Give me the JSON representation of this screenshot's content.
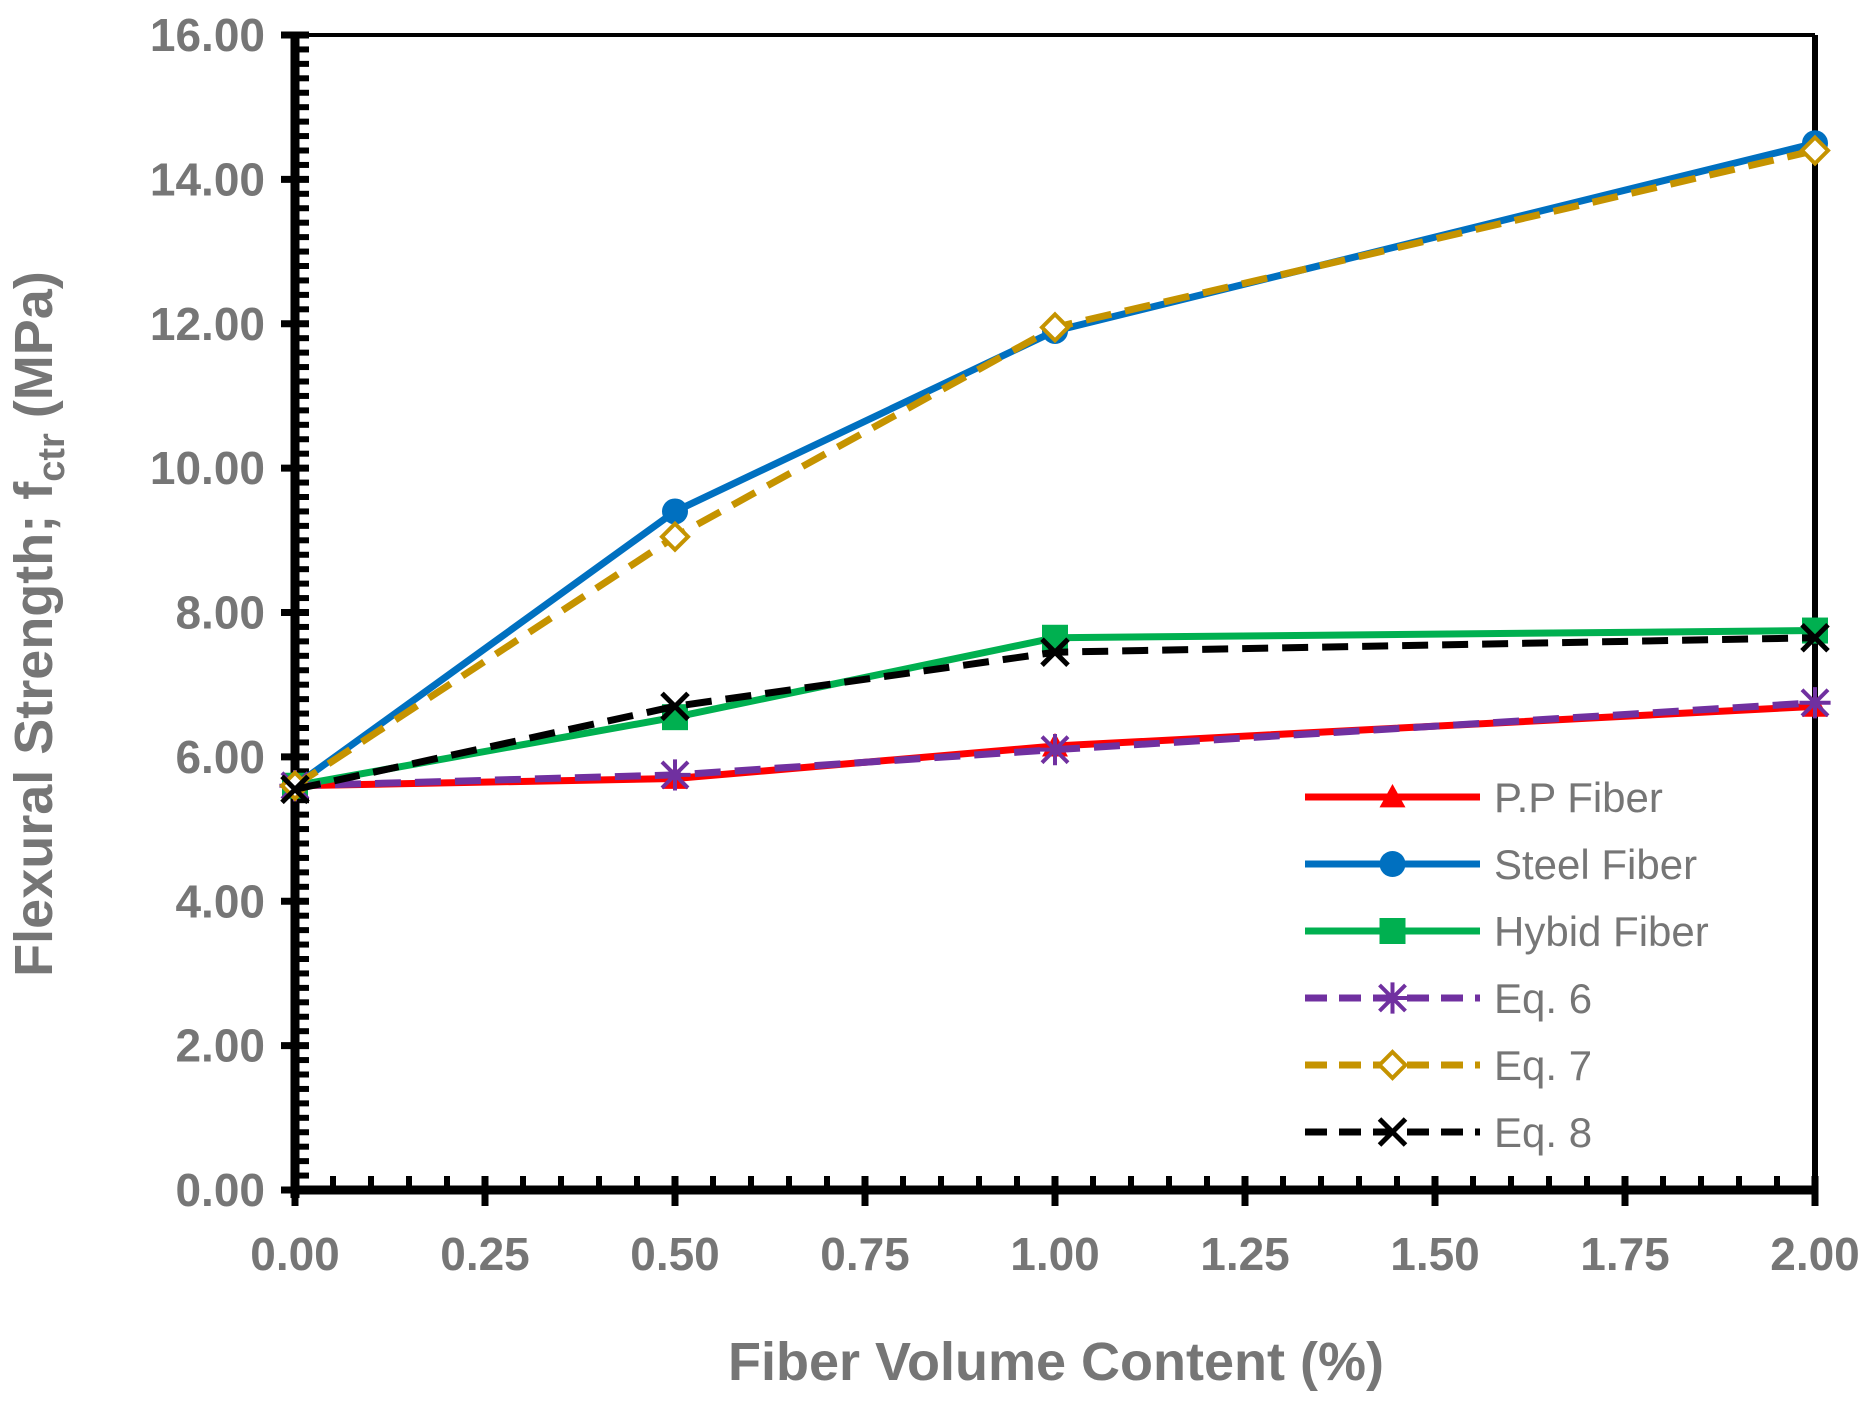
{
  "chart_data": {
    "type": "line",
    "title": "",
    "xlabel": "Fiber Volume Content (%)",
    "ylabel": "Flexural Strength; f",
    "ylabel_subscript": "ctr",
    "ylabel_suffix": " (MPa)",
    "x": [
      0.0,
      0.5,
      1.0,
      2.0
    ],
    "x_tick_labels": [
      "0.00",
      "0.25",
      "0.50",
      "0.75",
      "1.00",
      "1.25",
      "1.50",
      "1.75",
      "2.00"
    ],
    "y_tick_labels": [
      "0.00",
      "2.00",
      "4.00",
      "6.00",
      "8.00",
      "10.00",
      "12.00",
      "14.00",
      "16.00"
    ],
    "ylim": [
      0,
      16
    ],
    "grid": false,
    "legend_position": "bottom-right",
    "series": [
      {
        "name": "P.P Fiber",
        "values": [
          5.6,
          5.7,
          6.15,
          6.7
        ],
        "color": "#ff0000",
        "dash": "solid",
        "marker": "triangle"
      },
      {
        "name": "Steel Fiber",
        "values": [
          5.6,
          9.4,
          11.9,
          14.5
        ],
        "color": "#0070c0",
        "dash": "solid",
        "marker": "circle"
      },
      {
        "name": "Hybid Fiber",
        "values": [
          5.6,
          6.55,
          7.65,
          7.75
        ],
        "color": "#00b050",
        "dash": "solid",
        "marker": "square"
      },
      {
        "name": "Eq. 6",
        "values": [
          5.6,
          5.75,
          6.1,
          6.75
        ],
        "color": "#7030a0",
        "dash": "dashed",
        "marker": "asterisk"
      },
      {
        "name": "Eq. 7",
        "values": [
          5.6,
          9.05,
          11.95,
          14.4
        ],
        "color": "#c59300",
        "dash": "dashed",
        "marker": "diamond"
      },
      {
        "name": "Eq. 8",
        "values": [
          5.55,
          6.7,
          7.45,
          7.65
        ],
        "color": "#000000",
        "dash": "dashed",
        "marker": "x"
      }
    ]
  }
}
